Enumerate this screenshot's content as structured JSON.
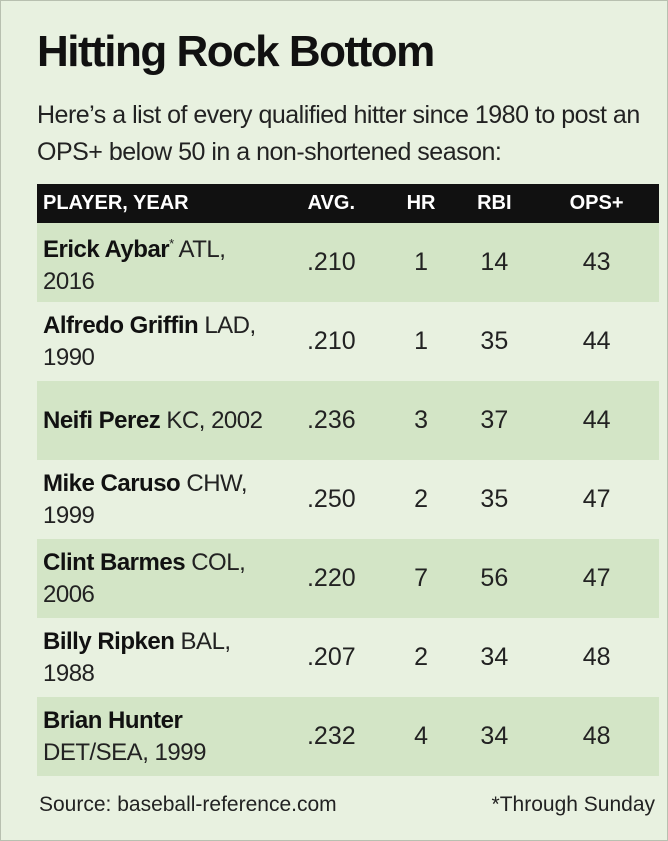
{
  "header": {
    "title": "Hitting Rock Bottom",
    "subtitle": "Here’s a list of every qualified hitter since 1980 to post an OPS+ below 50 in a non-shortened season:"
  },
  "table": {
    "columns": [
      "PLAYER, YEAR",
      "AVG.",
      "HR",
      "RBI",
      "OPS+"
    ],
    "rows": [
      {
        "player": "Erick Aybar",
        "note": "*",
        "team_year": "ATL, 2016",
        "avg": ".210",
        "hr": 1,
        "rbi": 14,
        "ops_plus": 43
      },
      {
        "player": "Alfredo Griffin",
        "team_year": "LAD, 1990",
        "avg": ".210",
        "hr": 1,
        "rbi": 35,
        "ops_plus": 44
      },
      {
        "player": "Neifi Perez",
        "team_year": "KC, 2002",
        "avg": ".236",
        "hr": 3,
        "rbi": 37,
        "ops_plus": 44
      },
      {
        "player": "Mike Caruso",
        "team_year": "CHW, 1999",
        "avg": ".250",
        "hr": 2,
        "rbi": 35,
        "ops_plus": 47
      },
      {
        "player": "Clint Barmes",
        "team_year": "COL, 2006",
        "avg": ".220",
        "hr": 7,
        "rbi": 56,
        "ops_plus": 47
      },
      {
        "player": "Billy Ripken",
        "team_year": "BAL, 1988",
        "avg": ".207",
        "hr": 2,
        "rbi": 34,
        "ops_plus": 48
      },
      {
        "player": "Brian Hunter",
        "team_year": "DET/SEA, 1999",
        "avg": ".232",
        "hr": 4,
        "rbi": 34,
        "ops_plus": 48
      }
    ]
  },
  "footer": {
    "source": "Source: baseball-reference.com",
    "note": "*Through Sunday"
  }
}
